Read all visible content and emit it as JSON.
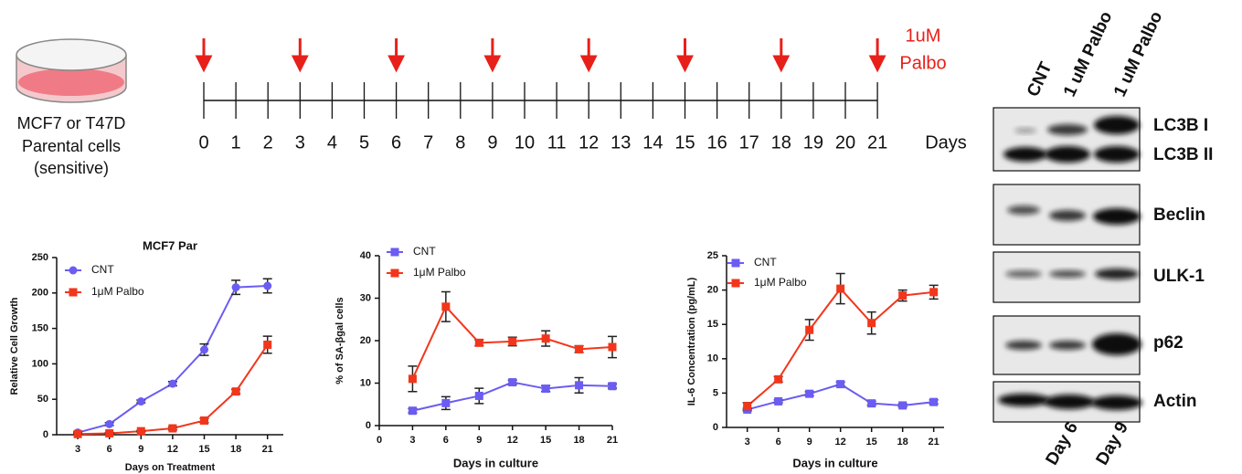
{
  "timeline": {
    "dish_label": [
      "MCF7 or T47D",
      "Parental cells",
      "(sensitive)"
    ],
    "days": [
      0,
      1,
      2,
      3,
      4,
      5,
      6,
      7,
      8,
      9,
      10,
      11,
      12,
      13,
      14,
      15,
      16,
      17,
      18,
      19,
      20,
      21
    ],
    "unit": "Days",
    "treatment_days": [
      0,
      3,
      6,
      9,
      12,
      15,
      18,
      21
    ],
    "treatment_label": [
      "1uM",
      "Palbo"
    ]
  },
  "blot": {
    "lanes": [
      "CNT",
      "1 uM Palbo",
      "1 uM Palbo"
    ],
    "bands": [
      "LC3B I",
      "LC3B II",
      "Beclin",
      "ULK-1",
      "p62",
      "Actin"
    ],
    "days": [
      "Day 6",
      "Day 9"
    ]
  },
  "chart_data": [
    {
      "type": "line",
      "title": "MCF7 Par",
      "x_label": "Days on Treatment",
      "y_label": "Relative Cell Growth",
      "x": [
        3,
        6,
        9,
        12,
        15,
        18,
        21
      ],
      "xlim": [
        1,
        22.5
      ],
      "xticks": [
        3,
        6,
        9,
        12,
        15,
        18,
        21
      ],
      "ylim": [
        0,
        250
      ],
      "yticks": [
        0,
        50,
        100,
        150,
        200,
        250
      ],
      "series": [
        {
          "name": "CNT",
          "color": "#6b5cf2",
          "marker": "circle",
          "values": [
            3,
            15,
            47,
            72,
            120,
            208,
            210
          ],
          "errors": [
            1,
            2,
            2,
            3,
            8,
            10,
            10
          ]
        },
        {
          "name": "1μM Palbo",
          "color": "#f2361c",
          "marker": "square",
          "values": [
            1,
            2,
            5,
            9,
            20,
            61,
            127
          ],
          "errors": [
            1,
            1,
            1,
            2,
            3,
            3,
            12
          ]
        }
      ]
    },
    {
      "type": "line",
      "x_label": "Days in culture",
      "y_label": "% of SA-βgal cells",
      "x": [
        3,
        6,
        9,
        12,
        15,
        18,
        21
      ],
      "xlim": [
        0,
        21
      ],
      "xticks": [
        0,
        3,
        6,
        9,
        12,
        15,
        18,
        21
      ],
      "ylim": [
        0,
        40
      ],
      "yticks": [
        0,
        10,
        20,
        30,
        40
      ],
      "series": [
        {
          "name": "CNT",
          "color": "#6b5cf2",
          "marker": "square",
          "values": [
            3.5,
            5.3,
            7,
            10.2,
            8.7,
            9.5,
            9.3
          ],
          "errors": [
            0.5,
            1.5,
            1.8,
            0.5,
            0.7,
            1.8,
            0.5
          ]
        },
        {
          "name": "1μM Palbo",
          "color": "#f2361c",
          "marker": "square",
          "values": [
            11,
            28,
            19.5,
            19.8,
            20.5,
            18,
            18.5
          ],
          "errors": [
            3,
            3.5,
            0.7,
            1,
            1.8,
            0.8,
            2.5
          ]
        }
      ]
    },
    {
      "type": "line",
      "x_label": "Days in culture",
      "y_label": "IL-6 Concentration (pg/mL)",
      "x": [
        3,
        6,
        9,
        12,
        15,
        18,
        21
      ],
      "xlim": [
        1,
        22
      ],
      "xticks": [
        3,
        6,
        9,
        12,
        15,
        18,
        21
      ],
      "ylim": [
        0,
        25
      ],
      "yticks": [
        0,
        5,
        10,
        15,
        20,
        25
      ],
      "series": [
        {
          "name": "CNT",
          "color": "#6b5cf2",
          "marker": "square",
          "values": [
            2.6,
            3.8,
            4.9,
            6.3,
            3.5,
            3.2,
            3.7
          ],
          "errors": [
            0.2,
            0.2,
            0.3,
            0.3,
            0.3,
            0.2,
            0.3
          ]
        },
        {
          "name": "1μM Palbo",
          "color": "#f2361c",
          "marker": "square",
          "values": [
            3.1,
            7,
            14.2,
            20.2,
            15.2,
            19.2,
            19.7
          ],
          "errors": [
            0.5,
            0.4,
            1.5,
            2.2,
            1.6,
            0.8,
            1
          ]
        }
      ]
    }
  ]
}
